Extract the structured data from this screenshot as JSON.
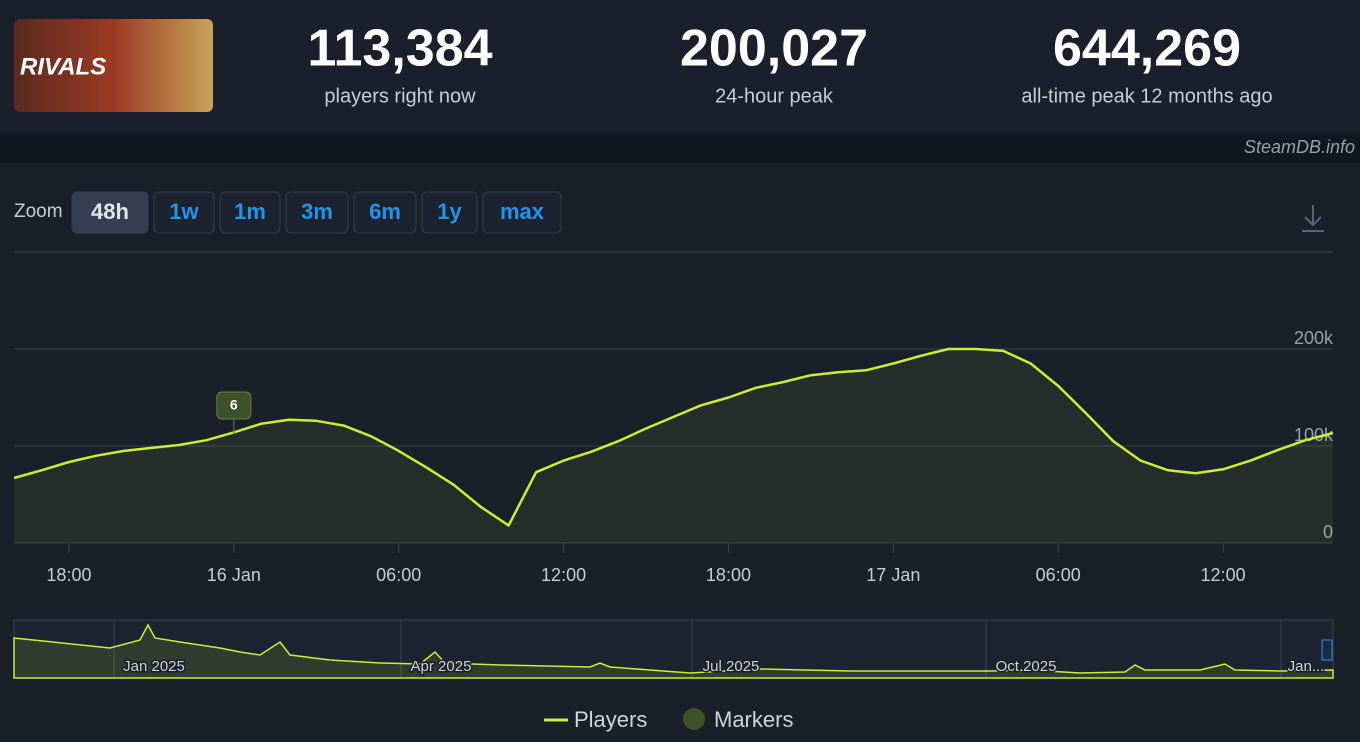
{
  "header": {
    "logo_text": "RIVALS",
    "stats": [
      {
        "value": "113,384",
        "label": "players right now"
      },
      {
        "value": "200,027",
        "label": "24-hour peak"
      },
      {
        "value": "644,269",
        "label": "all-time peak 12 months ago"
      }
    ],
    "source": "SteamDB.info"
  },
  "zoom": {
    "label": "Zoom",
    "buttons": [
      "48h",
      "1w",
      "1m",
      "3m",
      "6m",
      "1y",
      "max"
    ],
    "active": 0
  },
  "chart_data": {
    "type": "line",
    "x": [
      16,
      17,
      18,
      19,
      20,
      21,
      22,
      23,
      24,
      25,
      26,
      27,
      28,
      29,
      30,
      31,
      32,
      33,
      34,
      35,
      36,
      37,
      38,
      39,
      40,
      41,
      42,
      43,
      44,
      45,
      46,
      47,
      48,
      49,
      50,
      51,
      52,
      53,
      54,
      55,
      56,
      57,
      58,
      59,
      60,
      61,
      62,
      63,
      64
    ],
    "series": [
      {
        "name": "Players",
        "color": "#c6f135",
        "values": [
          67000,
          75000,
          83500,
          90000,
          95000,
          98000,
          101000,
          106000,
          114000,
          123000,
          127000,
          126000,
          121000,
          110000,
          95000,
          78000,
          60000,
          37000,
          18000,
          73000,
          85000,
          94000,
          105000,
          118000,
          130000,
          142000,
          150000,
          160000,
          166000,
          173000,
          176000,
          178000,
          185000,
          193000,
          200000,
          200000,
          198000,
          185000,
          162000,
          134000,
          105000,
          85000,
          75000,
          72000,
          76000,
          85000,
          96000,
          106000,
          113384
        ]
      }
    ],
    "markers": [
      {
        "x": 24,
        "label": "6"
      }
    ],
    "marker_legend": "Markers",
    "marker_color": "#3b5326",
    "xlim": [
      16,
      64
    ],
    "xticks": [
      {
        "value": 18,
        "label": "18:00"
      },
      {
        "value": 24,
        "label": "16 Jan"
      },
      {
        "value": 30,
        "label": "06:00"
      },
      {
        "value": 36,
        "label": "12:00"
      },
      {
        "value": 42,
        "label": "18:00"
      },
      {
        "value": 48,
        "label": "17 Jan"
      },
      {
        "value": 54,
        "label": "06:00"
      },
      {
        "value": 60,
        "label": "12:00"
      }
    ],
    "ylim": [
      0,
      300000
    ],
    "yticks": [
      0,
      {
        "value": 100000,
        "label": "100k"
      },
      {
        "value": 200000,
        "label": "200k"
      }
    ],
    "grid": true
  },
  "navigator": {
    "labels": [
      "Jan 2025",
      "Apr 2025",
      "Jul 2025",
      "Oct 2025",
      "Jan..."
    ]
  }
}
